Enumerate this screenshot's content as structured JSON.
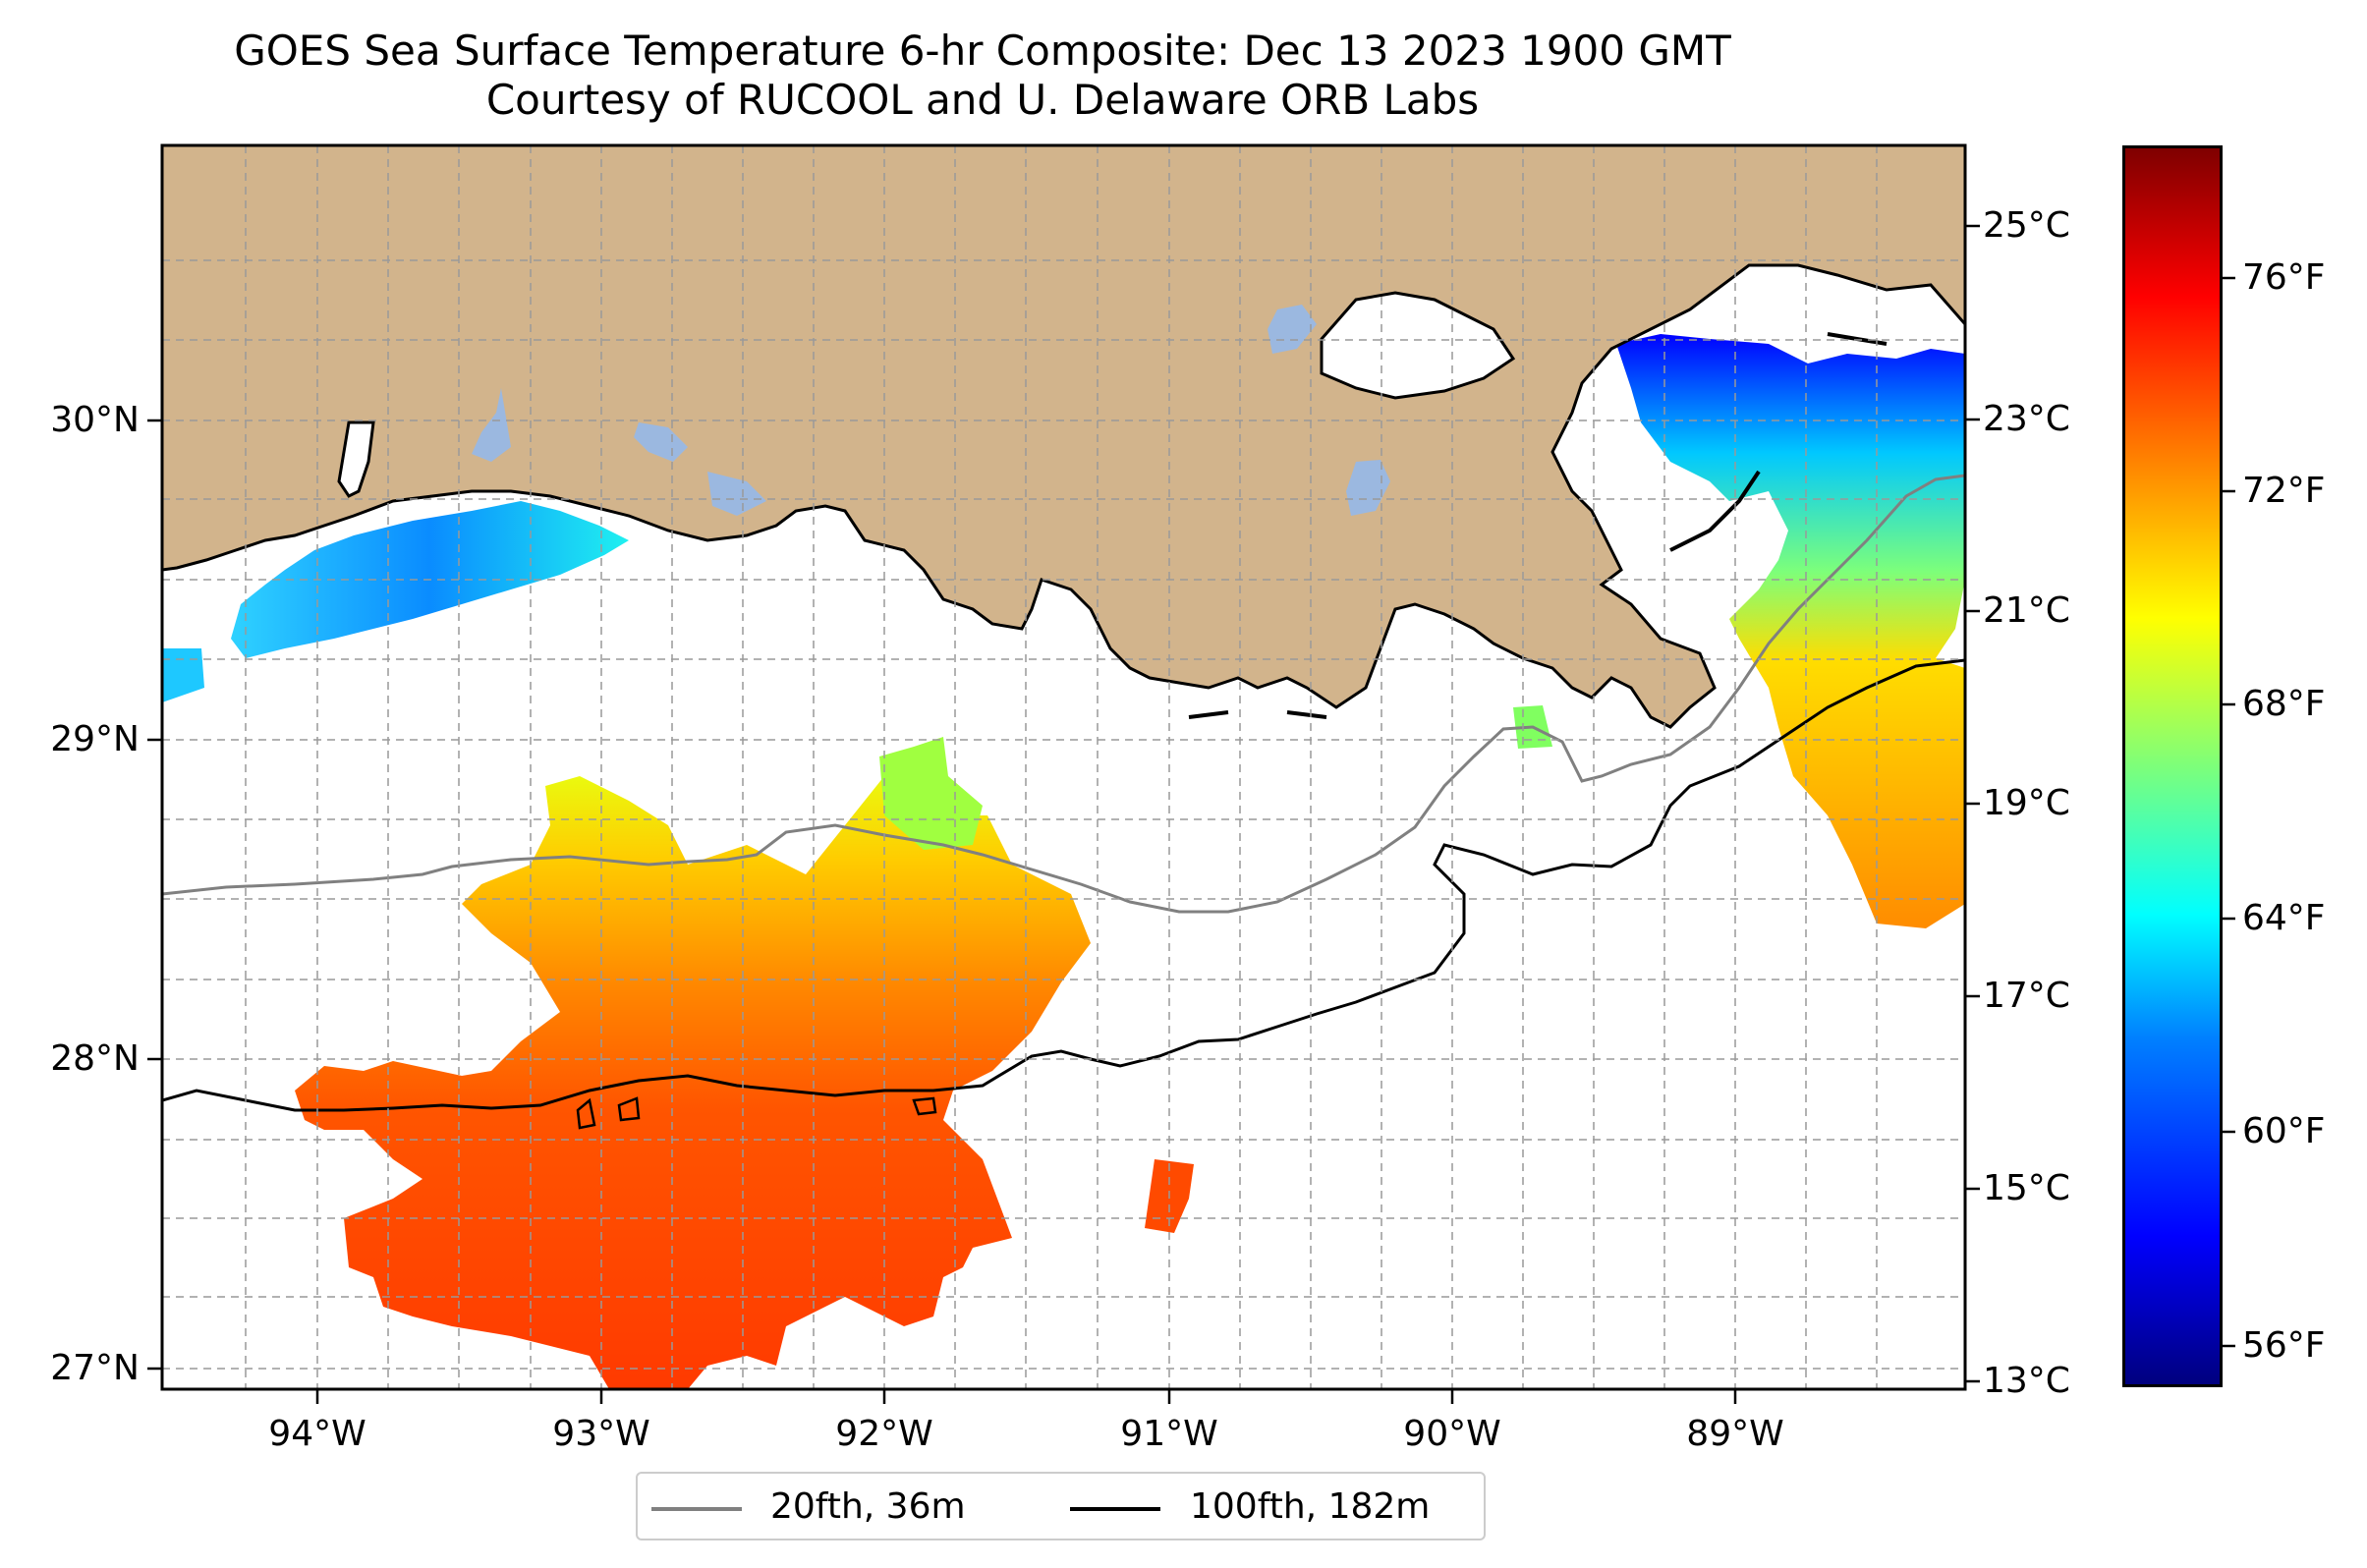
{
  "title": {
    "line1": "GOES Sea Surface Temperature 6-hr Composite: Dec 13 2023 1900 GMT",
    "line2": "Courtesy of RUCOOL and U. Delaware ORB Labs"
  },
  "map": {
    "lat_labels": [
      "30°N",
      "29°N",
      "28°N",
      "27°N"
    ],
    "lon_labels": [
      "94°W",
      "93°W",
      "92°W",
      "91°W",
      "90°W",
      "89°W"
    ],
    "land_color": "#d2b48c",
    "lake_color": "#9bb8e0",
    "gridlines": "dashed"
  },
  "colorbar": {
    "celsius_labels": [
      "25°C",
      "23°C",
      "21°C",
      "19°C",
      "17°C",
      "15°C",
      "13°C"
    ],
    "fahrenheit_labels": [
      "76°F",
      "72°F",
      "68°F",
      "64°F",
      "60°F",
      "56°F"
    ],
    "colormap": "jet"
  },
  "legend": {
    "items": [
      {
        "label": "20fth, 36m",
        "color": "#808080"
      },
      {
        "label": "100fth, 182m",
        "color": "#000000"
      }
    ]
  }
}
